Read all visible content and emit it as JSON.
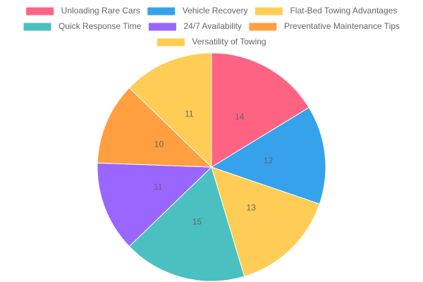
{
  "chart_data": {
    "type": "pie",
    "categories": [
      "Unloading Rare Cars",
      "Vehicle Recovery",
      "Flat-Bed Towing Advantages",
      "Quick Response Time",
      "24/7 Availability",
      "Preventative Maintenance Tips",
      "Versatility of Towing"
    ],
    "values": [
      14,
      12,
      13,
      15,
      11,
      10,
      11
    ],
    "colors": [
      "#ff6384",
      "#36a2eb",
      "#ffcd56",
      "#4bc0c0",
      "#9966ff",
      "#ff9f40",
      "#ffcd56"
    ],
    "legend": "top"
  }
}
